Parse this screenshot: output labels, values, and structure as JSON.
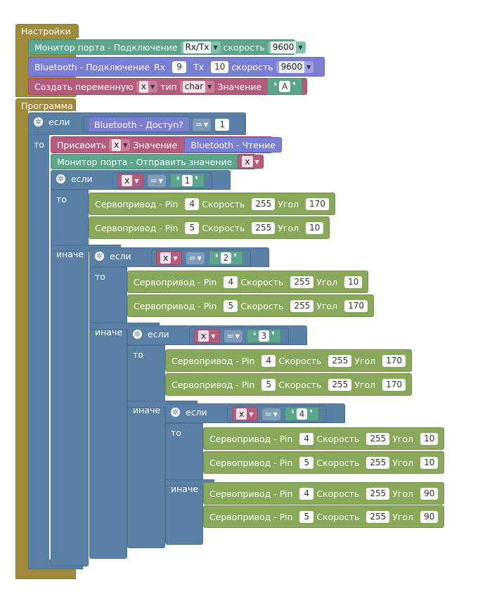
{
  "setup": {
    "label": "Настройки",
    "serial": {
      "label": "Монитор порта - Подключение",
      "port": "Rx/Tx",
      "speed_label": "скорость",
      "speed": "9600"
    },
    "bt": {
      "label": "Bluetooth - Подключение",
      "rx_label": "Rx",
      "rx": "9",
      "tx_label": "Tx",
      "tx": "10",
      "speed_label": "скорость",
      "speed": "9600"
    },
    "var": {
      "label": "Создать переменную",
      "name": "x",
      "type_label": "тип",
      "type": "char",
      "value_label": "Значение",
      "value": "A"
    }
  },
  "program": {
    "label": "Программа",
    "if_label": "если",
    "then_label": "то",
    "else_label": "иначе",
    "bt_available": "Bluetooth - Доступ?",
    "eq_op": "=",
    "one": "1",
    "assign": {
      "label": "Присвоить",
      "var": "x",
      "value_label": "Значение",
      "source": "Bluetooth - Чтение"
    },
    "send": {
      "label": "Монитор порта - Отправить значение",
      "var": "x"
    },
    "cond_var": "x",
    "quote_open": "❛",
    "quote_close": "❜",
    "servo_label": "Сервопривод - Pin",
    "speed_label": "Скорость",
    "angle_label": "Угол",
    "branches": [
      {
        "cmp": "1",
        "servos": [
          {
            "pin": "4",
            "speed": "255",
            "angle": "170"
          },
          {
            "pin": "5",
            "speed": "255",
            "angle": "10"
          }
        ]
      },
      {
        "cmp": "2",
        "servos": [
          {
            "pin": "4",
            "speed": "255",
            "angle": "10"
          },
          {
            "pin": "5",
            "speed": "255",
            "angle": "170"
          }
        ]
      },
      {
        "cmp": "3",
        "servos": [
          {
            "pin": "4",
            "speed": "255",
            "angle": "170"
          },
          {
            "pin": "5",
            "speed": "255",
            "angle": "170"
          }
        ]
      },
      {
        "cmp": "4",
        "servos": [
          {
            "pin": "4",
            "speed": "255",
            "angle": "10"
          },
          {
            "pin": "5",
            "speed": "255",
            "angle": "10"
          }
        ]
      }
    ],
    "else_servos": [
      {
        "pin": "4",
        "speed": "255",
        "angle": "90"
      },
      {
        "pin": "5",
        "speed": "255",
        "angle": "90"
      }
    ]
  }
}
